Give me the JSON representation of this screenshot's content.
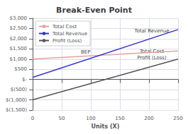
{
  "chart_data": {
    "type": "line",
    "title": "Break-Even Point",
    "xlabel": "Units (X)",
    "xlim": [
      0,
      250
    ],
    "ylim": [
      -1500,
      3000
    ],
    "xticks": [
      0,
      50,
      100,
      150,
      200,
      250
    ],
    "yticks": [
      {
        "value": -1500,
        "label": "$(1,500)"
      },
      {
        "value": -1000,
        "label": "$(1,000)"
      },
      {
        "value": -500,
        "label": "$(500)"
      },
      {
        "value": 0,
        "label": "$-"
      },
      {
        "value": 500,
        "label": "$500"
      },
      {
        "value": 1000,
        "label": "$1,000"
      },
      {
        "value": 1500,
        "label": "$1,500"
      },
      {
        "value": 2000,
        "label": "$2,000"
      },
      {
        "value": 2500,
        "label": "$2,500"
      },
      {
        "value": 3000,
        "label": "$3,000"
      }
    ],
    "x": [
      0,
      250
    ],
    "series": [
      {
        "name": "Total Cost",
        "color": "#e8a0a0",
        "values": [
          1000,
          1400
        ]
      },
      {
        "name": "Total Revenue",
        "color": "#3333cc",
        "values": [
          100,
          2450
        ]
      },
      {
        "name": "Profit (Loss)",
        "color": "#555555",
        "values": [
          -1000,
          1000
        ]
      }
    ],
    "annotations": [
      {
        "text": "BEP",
        "x": 91,
        "y": 1350
      },
      {
        "text": "Total Revenue",
        "x": 205,
        "y": 2380
      },
      {
        "text": "Total Cost",
        "x": 205,
        "y": 1390
      },
      {
        "text": "Profit (Loss)",
        "x": 205,
        "y": 1060
      }
    ],
    "grid": true,
    "legend": "upper left"
  }
}
